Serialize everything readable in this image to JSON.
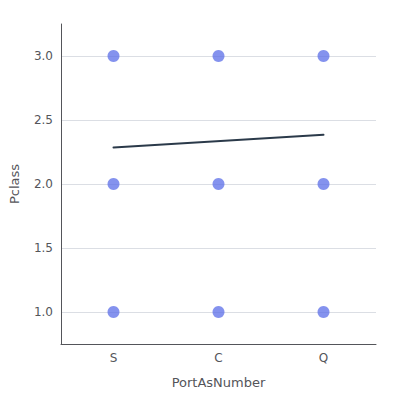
{
  "chart_data": {
    "type": "scatter",
    "xlabel": "PortAsNumber",
    "ylabel": "Pclass",
    "categories": [
      "S",
      "C",
      "Q"
    ],
    "x": [
      "S",
      "S",
      "S",
      "C",
      "C",
      "C",
      "Q",
      "Q",
      "Q"
    ],
    "y": [
      1,
      2,
      3,
      1,
      2,
      3,
      1,
      2,
      3
    ],
    "color": "#5b6ee8",
    "trend": {
      "x": [
        "S",
        "Q"
      ],
      "y": [
        2.285,
        2.385
      ],
      "color": "#2b3a4a"
    },
    "ylim": [
      0.75,
      3.25
    ],
    "yticks": [
      {
        "value": 1,
        "label": "1.0"
      },
      1.5,
      {
        "value": 2,
        "label": "2.0"
      },
      2.5,
      {
        "value": 3,
        "label": "3.0"
      }
    ],
    "grid": true
  }
}
